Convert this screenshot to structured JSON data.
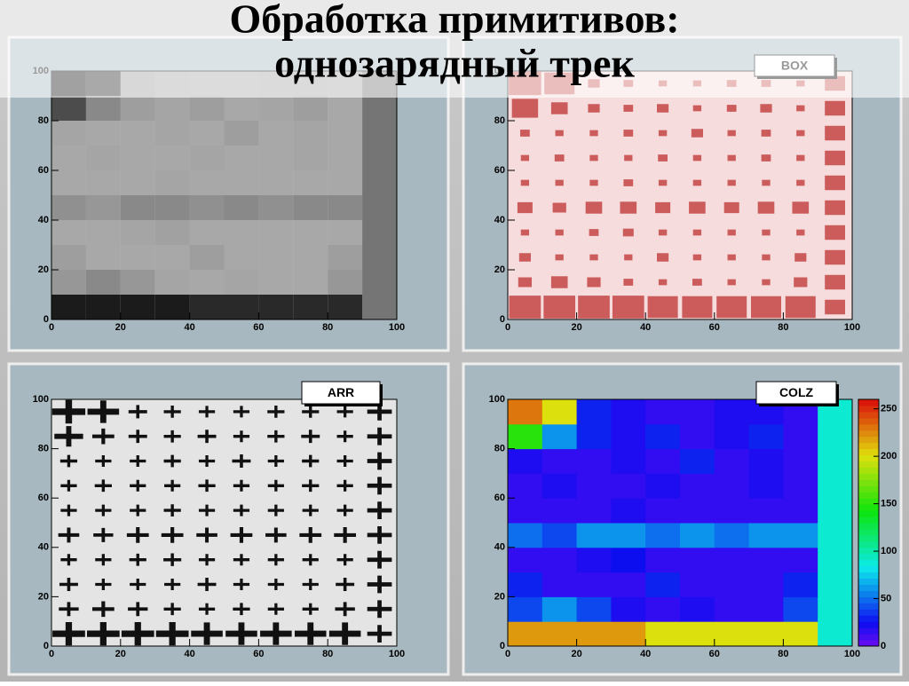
{
  "title_lines": [
    "Обработка примитивов:",
    "однозарядный трек"
  ],
  "chart_data": [
    {
      "type": "heatmap",
      "style": "scatter",
      "xlim": [
        0,
        100
      ],
      "ylim": [
        0,
        100
      ],
      "xticks": [
        0,
        20,
        40,
        60,
        80,
        100
      ],
      "yticks": [
        0,
        20,
        40,
        60,
        80,
        100
      ],
      "xbins": [
        0,
        10,
        20,
        30,
        40,
        50,
        60,
        70,
        80,
        90,
        100
      ],
      "ybins": [
        0,
        10,
        20,
        30,
        40,
        50,
        60,
        70,
        80,
        90,
        100
      ],
      "zlim": [
        0,
        260
      ],
      "z": [
        [
          220,
          220,
          220,
          220,
          200,
          200,
          200,
          200,
          200,
          90
        ],
        [
          40,
          60,
          40,
          20,
          15,
          20,
          15,
          15,
          40,
          90
        ],
        [
          30,
          15,
          15,
          15,
          30,
          15,
          15,
          15,
          30,
          90
        ],
        [
          15,
          15,
          20,
          25,
          15,
          15,
          15,
          15,
          15,
          90
        ],
        [
          50,
          40,
          60,
          60,
          50,
          60,
          50,
          60,
          60,
          90
        ],
        [
          15,
          15,
          15,
          20,
          15,
          15,
          15,
          15,
          15,
          90
        ],
        [
          15,
          20,
          15,
          15,
          20,
          15,
          15,
          20,
          15,
          90
        ],
        [
          20,
          15,
          15,
          20,
          15,
          30,
          15,
          20,
          15,
          90
        ],
        [
          150,
          60,
          30,
          20,
          30,
          15,
          20,
          30,
          15,
          90
        ],
        [
          230,
          200,
          30,
          20,
          15,
          15,
          20,
          20,
          15,
          90
        ]
      ]
    },
    {
      "type": "heatmap",
      "style": "box",
      "label": "BOX",
      "xlim": [
        0,
        100
      ],
      "ylim": [
        0,
        100
      ],
      "xticks": [
        0,
        20,
        40,
        60,
        80,
        100
      ],
      "yticks": [
        0,
        20,
        40,
        60,
        80,
        100
      ],
      "xbins": [
        0,
        10,
        20,
        30,
        40,
        50,
        60,
        70,
        80,
        90,
        100
      ],
      "ybins": [
        0,
        10,
        20,
        30,
        40,
        50,
        60,
        70,
        80,
        90,
        100
      ],
      "zlim": [
        0,
        260
      ],
      "z": [
        [
          220,
          220,
          220,
          220,
          200,
          200,
          200,
          200,
          200,
          90
        ],
        [
          40,
          60,
          40,
          20,
          15,
          20,
          15,
          15,
          40,
          90
        ],
        [
          30,
          15,
          15,
          15,
          30,
          15,
          15,
          15,
          30,
          90
        ],
        [
          15,
          15,
          20,
          25,
          15,
          15,
          15,
          15,
          15,
          90
        ],
        [
          50,
          40,
          60,
          60,
          50,
          60,
          50,
          60,
          60,
          90
        ],
        [
          15,
          15,
          15,
          20,
          15,
          15,
          15,
          15,
          15,
          90
        ],
        [
          15,
          20,
          15,
          15,
          20,
          15,
          15,
          20,
          15,
          90
        ],
        [
          20,
          15,
          15,
          20,
          15,
          30,
          15,
          20,
          15,
          90
        ],
        [
          150,
          60,
          30,
          20,
          30,
          15,
          20,
          30,
          15,
          90
        ],
        [
          230,
          200,
          30,
          20,
          15,
          15,
          20,
          20,
          15,
          90
        ]
      ]
    },
    {
      "type": "heatmap",
      "style": "arrow",
      "label": "ARR",
      "xlim": [
        0,
        100
      ],
      "ylim": [
        0,
        100
      ],
      "xticks": [
        0,
        20,
        40,
        60,
        80,
        100
      ],
      "yticks": [
        0,
        20,
        40,
        60,
        80,
        100
      ],
      "xbins": [
        0,
        10,
        20,
        30,
        40,
        50,
        60,
        70,
        80,
        90,
        100
      ],
      "ybins": [
        0,
        10,
        20,
        30,
        40,
        50,
        60,
        70,
        80,
        90,
        100
      ],
      "zlim": [
        0,
        260
      ],
      "z": [
        [
          220,
          220,
          220,
          220,
          200,
          200,
          200,
          200,
          200,
          90
        ],
        [
          40,
          60,
          40,
          20,
          15,
          20,
          15,
          15,
          40,
          90
        ],
        [
          30,
          15,
          15,
          15,
          30,
          15,
          15,
          15,
          30,
          90
        ],
        [
          15,
          15,
          20,
          25,
          15,
          15,
          15,
          15,
          15,
          90
        ],
        [
          50,
          40,
          60,
          60,
          50,
          60,
          50,
          60,
          60,
          90
        ],
        [
          15,
          15,
          15,
          20,
          15,
          15,
          15,
          15,
          15,
          90
        ],
        [
          15,
          20,
          15,
          15,
          20,
          15,
          15,
          20,
          15,
          90
        ],
        [
          20,
          15,
          15,
          20,
          15,
          30,
          15,
          20,
          15,
          90
        ],
        [
          150,
          60,
          30,
          20,
          30,
          15,
          20,
          30,
          15,
          90
        ],
        [
          230,
          200,
          30,
          20,
          15,
          15,
          20,
          20,
          15,
          90
        ]
      ]
    },
    {
      "type": "heatmap",
      "style": "colz",
      "label": "COLZ",
      "xlim": [
        0,
        100
      ],
      "ylim": [
        0,
        100
      ],
      "xticks": [
        0,
        20,
        40,
        60,
        80,
        100
      ],
      "yticks": [
        0,
        20,
        40,
        60,
        80,
        100
      ],
      "xbins": [
        0,
        10,
        20,
        30,
        40,
        50,
        60,
        70,
        80,
        90,
        100
      ],
      "ybins": [
        0,
        10,
        20,
        30,
        40,
        50,
        60,
        70,
        80,
        90,
        100
      ],
      "zlim": [
        0,
        260
      ],
      "zticks": [
        0,
        50,
        100,
        150,
        200,
        250
      ],
      "z": [
        [
          220,
          220,
          220,
          220,
          200,
          200,
          200,
          200,
          200,
          90
        ],
        [
          40,
          60,
          40,
          20,
          15,
          20,
          15,
          15,
          40,
          90
        ],
        [
          30,
          15,
          15,
          15,
          30,
          15,
          15,
          15,
          30,
          90
        ],
        [
          15,
          15,
          20,
          25,
          15,
          15,
          15,
          15,
          15,
          90
        ],
        [
          50,
          40,
          60,
          60,
          50,
          60,
          50,
          60,
          60,
          90
        ],
        [
          15,
          15,
          15,
          20,
          15,
          15,
          15,
          15,
          15,
          90
        ],
        [
          15,
          20,
          15,
          15,
          20,
          15,
          15,
          20,
          15,
          90
        ],
        [
          20,
          15,
          15,
          20,
          15,
          30,
          15,
          20,
          15,
          90
        ],
        [
          150,
          60,
          30,
          20,
          30,
          15,
          20,
          30,
          15,
          90
        ],
        [
          230,
          200,
          30,
          20,
          15,
          15,
          20,
          20,
          15,
          90
        ]
      ]
    }
  ]
}
